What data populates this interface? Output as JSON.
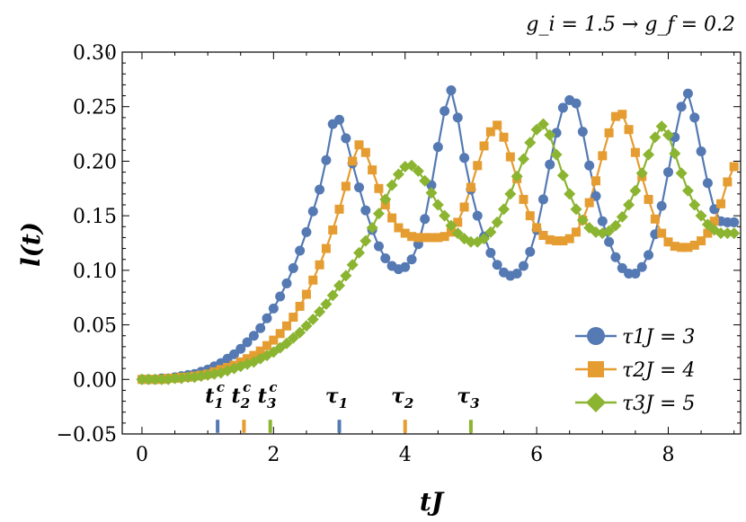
{
  "chart_data": {
    "type": "line",
    "annotation": "g_i = 1.5 → g_f = 0.2",
    "xlabel": "tJ",
    "ylabel": "l(t)",
    "xlim": [
      -0.3,
      9.1
    ],
    "ylim": [
      -0.05,
      0.3
    ],
    "x_ticks": [
      0,
      2,
      4,
      6,
      8
    ],
    "y_ticks": [
      -0.05,
      0.0,
      0.05,
      0.1,
      0.15,
      0.2,
      0.25,
      0.3
    ],
    "x_tick_labels": [
      "0",
      "2",
      "4",
      "6",
      "8"
    ],
    "y_tick_labels": [
      "−0.05",
      "0.00",
      "0.05",
      "0.10",
      "0.15",
      "0.20",
      "0.25",
      "0.30"
    ],
    "grid": false,
    "legend_position": "bottom-right",
    "series": [
      {
        "name": "τ1J = 3",
        "color": "#5479B3",
        "marker": "circle",
        "x": [
          0,
          0.1,
          0.2,
          0.3,
          0.4,
          0.5,
          0.6,
          0.7,
          0.8,
          0.9,
          1.0,
          1.1,
          1.2,
          1.3,
          1.4,
          1.5,
          1.6,
          1.7,
          1.8,
          1.9,
          2.0,
          2.1,
          2.2,
          2.3,
          2.4,
          2.5,
          2.6,
          2.7,
          2.8,
          2.9,
          3.0,
          3.1,
          3.2,
          3.3,
          3.4,
          3.5,
          3.6,
          3.7,
          3.8,
          3.9,
          4.0,
          4.1,
          4.2,
          4.3,
          4.4,
          4.5,
          4.6,
          4.7,
          4.8,
          4.9,
          5.0,
          5.1,
          5.2,
          5.3,
          5.4,
          5.5,
          5.6,
          5.7,
          5.8,
          5.9,
          6.0,
          6.1,
          6.2,
          6.3,
          6.4,
          6.5,
          6.6,
          6.7,
          6.8,
          6.9,
          7.0,
          7.1,
          7.2,
          7.3,
          7.4,
          7.5,
          7.6,
          7.7,
          7.8,
          7.9,
          8.0,
          8.1,
          8.2,
          8.3,
          8.4,
          8.5,
          8.6,
          8.7,
          8.8,
          8.9,
          9.0
        ],
        "y": [
          0.0,
          0.0,
          0.0,
          0.001,
          0.001,
          0.002,
          0.003,
          0.004,
          0.005,
          0.007,
          0.009,
          0.012,
          0.015,
          0.019,
          0.023,
          0.028,
          0.034,
          0.04,
          0.047,
          0.056,
          0.065,
          0.076,
          0.088,
          0.102,
          0.118,
          0.135,
          0.154,
          0.174,
          0.201,
          0.234,
          0.238,
          0.221,
          0.198,
          0.176,
          0.155,
          0.137,
          0.122,
          0.111,
          0.104,
          0.101,
          0.103,
          0.11,
          0.124,
          0.147,
          0.178,
          0.213,
          0.246,
          0.265,
          0.24,
          0.203,
          0.174,
          0.15,
          0.131,
          0.116,
          0.105,
          0.098,
          0.095,
          0.097,
          0.104,
          0.117,
          0.137,
          0.165,
          0.197,
          0.226,
          0.249,
          0.256,
          0.253,
          0.227,
          0.196,
          0.168,
          0.145,
          0.126,
          0.112,
          0.102,
          0.097,
          0.097,
          0.103,
          0.114,
          0.133,
          0.159,
          0.19,
          0.222,
          0.25,
          0.262,
          0.24,
          0.209,
          0.18,
          0.156,
          0.145,
          0.144,
          0.144
        ]
      },
      {
        "name": "τ2J = 4",
        "color": "#E59C30",
        "marker": "square",
        "x": [
          0,
          0.1,
          0.2,
          0.3,
          0.4,
          0.5,
          0.6,
          0.7,
          0.8,
          0.9,
          1.0,
          1.1,
          1.2,
          1.3,
          1.4,
          1.5,
          1.6,
          1.7,
          1.8,
          1.9,
          2.0,
          2.1,
          2.2,
          2.3,
          2.4,
          2.5,
          2.6,
          2.7,
          2.8,
          2.9,
          3.0,
          3.1,
          3.2,
          3.3,
          3.4,
          3.5,
          3.6,
          3.7,
          3.8,
          3.9,
          4.0,
          4.1,
          4.2,
          4.3,
          4.4,
          4.5,
          4.6,
          4.7,
          4.8,
          4.9,
          5.0,
          5.1,
          5.2,
          5.3,
          5.4,
          5.5,
          5.6,
          5.7,
          5.8,
          5.9,
          6.0,
          6.1,
          6.2,
          6.3,
          6.4,
          6.5,
          6.6,
          6.7,
          6.8,
          6.9,
          7.0,
          7.1,
          7.2,
          7.3,
          7.4,
          7.5,
          7.6,
          7.7,
          7.8,
          7.9,
          8.0,
          8.1,
          8.2,
          8.3,
          8.4,
          8.5,
          8.6,
          8.7,
          8.8,
          8.9,
          9.0
        ],
        "y": [
          0.0,
          0.0,
          0.0,
          0.0,
          0.001,
          0.001,
          0.002,
          0.002,
          0.003,
          0.004,
          0.005,
          0.007,
          0.009,
          0.011,
          0.013,
          0.016,
          0.019,
          0.022,
          0.026,
          0.031,
          0.036,
          0.042,
          0.049,
          0.057,
          0.067,
          0.078,
          0.091,
          0.105,
          0.12,
          0.137,
          0.156,
          0.177,
          0.2,
          0.215,
          0.208,
          0.192,
          0.175,
          0.16,
          0.148,
          0.139,
          0.134,
          0.131,
          0.13,
          0.13,
          0.13,
          0.13,
          0.131,
          0.135,
          0.144,
          0.158,
          0.176,
          0.196,
          0.214,
          0.227,
          0.233,
          0.222,
          0.204,
          0.184,
          0.165,
          0.15,
          0.139,
          0.132,
          0.128,
          0.127,
          0.127,
          0.129,
          0.135,
          0.146,
          0.162,
          0.182,
          0.205,
          0.226,
          0.241,
          0.243,
          0.229,
          0.208,
          0.186,
          0.165,
          0.147,
          0.134,
          0.126,
          0.122,
          0.121,
          0.121,
          0.123,
          0.127,
          0.134,
          0.145,
          0.161,
          0.181,
          0.195
        ]
      },
      {
        "name": "τ3J = 5",
        "color": "#8BB431",
        "marker": "diamond",
        "x": [
          0,
          0.1,
          0.2,
          0.3,
          0.4,
          0.5,
          0.6,
          0.7,
          0.8,
          0.9,
          1.0,
          1.1,
          1.2,
          1.3,
          1.4,
          1.5,
          1.6,
          1.7,
          1.8,
          1.9,
          2.0,
          2.1,
          2.2,
          2.3,
          2.4,
          2.5,
          2.6,
          2.7,
          2.8,
          2.9,
          3.0,
          3.1,
          3.2,
          3.3,
          3.4,
          3.5,
          3.6,
          3.7,
          3.8,
          3.9,
          4.0,
          4.1,
          4.2,
          4.3,
          4.4,
          4.5,
          4.6,
          4.7,
          4.8,
          4.9,
          5.0,
          5.1,
          5.2,
          5.3,
          5.4,
          5.5,
          5.6,
          5.7,
          5.8,
          5.9,
          6.0,
          6.1,
          6.2,
          6.3,
          6.4,
          6.5,
          6.6,
          6.7,
          6.8,
          6.9,
          7.0,
          7.1,
          7.2,
          7.3,
          7.4,
          7.5,
          7.6,
          7.7,
          7.8,
          7.9,
          8.0,
          8.1,
          8.2,
          8.3,
          8.4,
          8.5,
          8.6,
          8.7,
          8.8,
          8.9,
          9.0
        ],
        "y": [
          0.0,
          0.0,
          0.0,
          0.0,
          0.0,
          0.001,
          0.001,
          0.002,
          0.002,
          0.003,
          0.004,
          0.005,
          0.006,
          0.008,
          0.01,
          0.012,
          0.014,
          0.016,
          0.019,
          0.022,
          0.025,
          0.029,
          0.033,
          0.038,
          0.043,
          0.049,
          0.055,
          0.062,
          0.069,
          0.077,
          0.086,
          0.095,
          0.105,
          0.116,
          0.127,
          0.139,
          0.152,
          0.165,
          0.178,
          0.188,
          0.195,
          0.196,
          0.191,
          0.182,
          0.171,
          0.16,
          0.15,
          0.141,
          0.134,
          0.129,
          0.126,
          0.126,
          0.129,
          0.135,
          0.144,
          0.156,
          0.17,
          0.186,
          0.202,
          0.217,
          0.229,
          0.234,
          0.224,
          0.206,
          0.187,
          0.17,
          0.156,
          0.146,
          0.139,
          0.135,
          0.134,
          0.136,
          0.141,
          0.149,
          0.16,
          0.173,
          0.189,
          0.206,
          0.222,
          0.232,
          0.224,
          0.207,
          0.189,
          0.173,
          0.16,
          0.15,
          0.142,
          0.137,
          0.134,
          0.134,
          0.134
        ]
      }
    ],
    "markers": [
      {
        "label": "t",
        "sub": "1",
        "sup": "c",
        "x": 1.15,
        "color": "#5479B3"
      },
      {
        "label": "t",
        "sub": "2",
        "sup": "c",
        "x": 1.55,
        "color": "#E59C30"
      },
      {
        "label": "t",
        "sub": "3",
        "sup": "c",
        "x": 1.95,
        "color": "#8BB431"
      },
      {
        "label": "τ",
        "sub": "1",
        "sup": "",
        "x": 3,
        "color": "#5479B3"
      },
      {
        "label": "τ",
        "sub": "2",
        "sup": "",
        "x": 4,
        "color": "#E59C30"
      },
      {
        "label": "τ",
        "sub": "3",
        "sup": "",
        "x": 5,
        "color": "#8BB431"
      }
    ]
  }
}
